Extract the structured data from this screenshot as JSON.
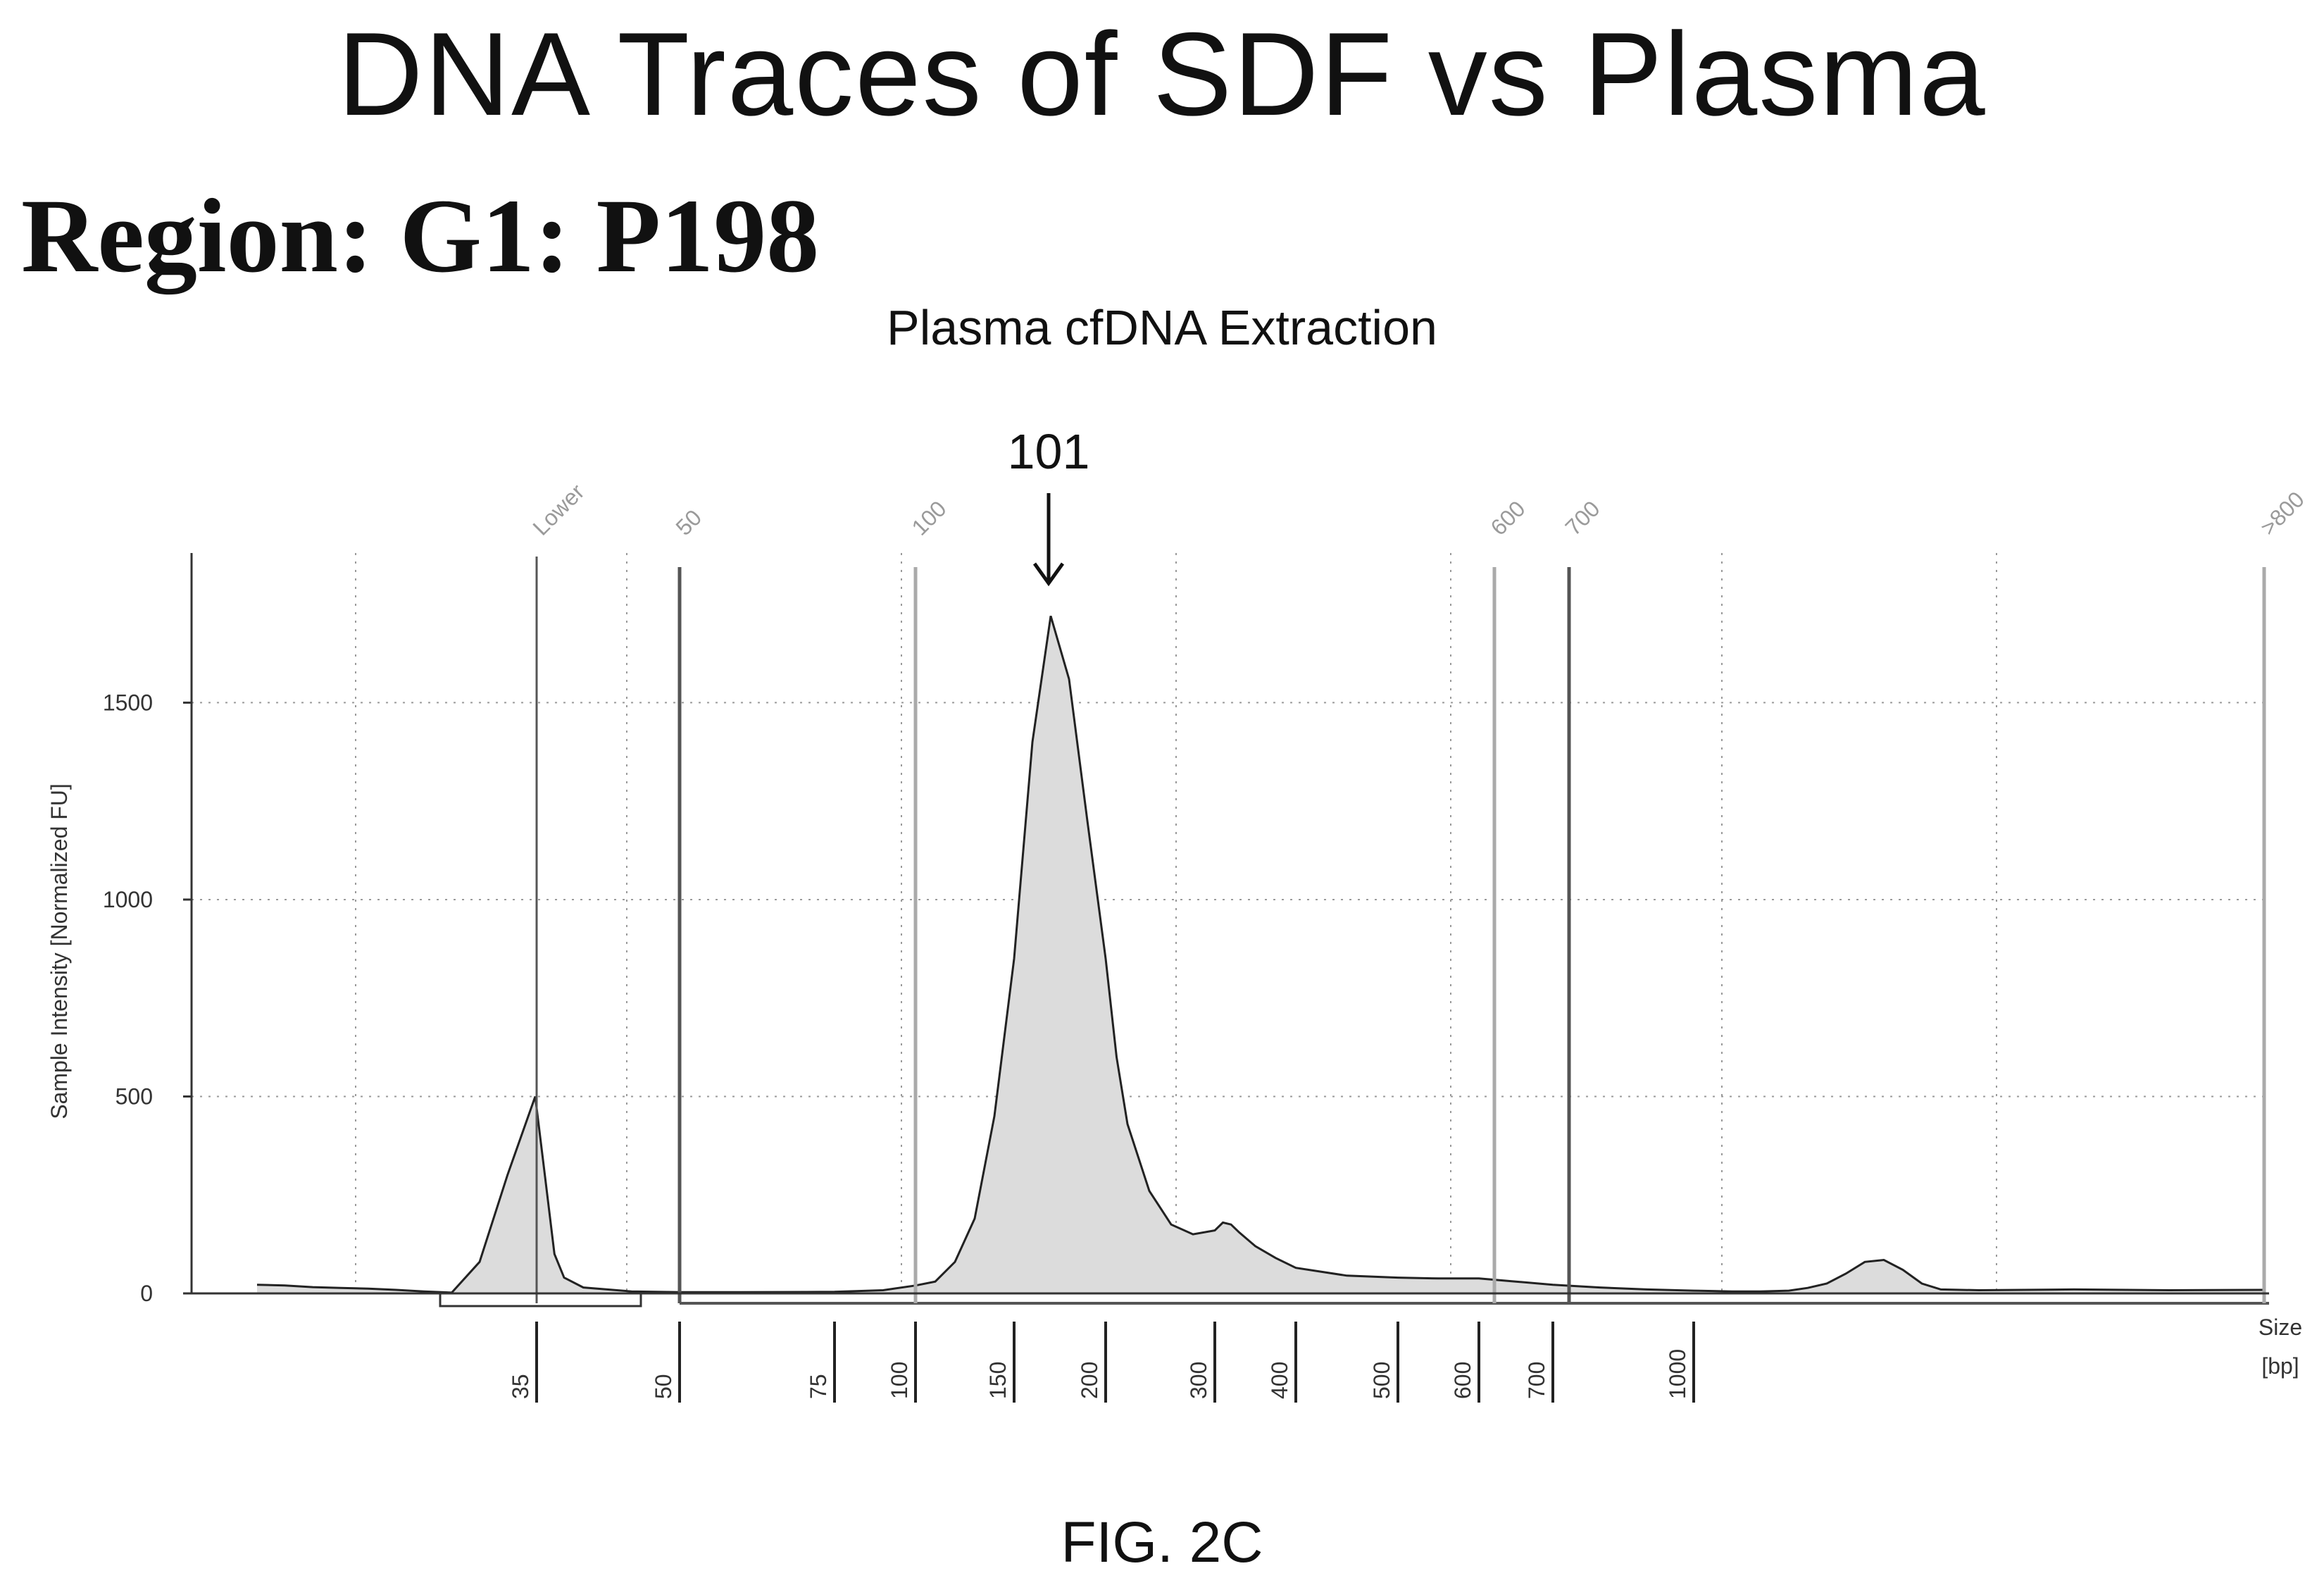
{
  "headline": "DNA Traces of SDF vs Plasma",
  "region": "Region: G1: P198",
  "figure_label": "FIG. 2C",
  "chart_data": {
    "type": "area",
    "title": "Plasma cfDNA Extraction",
    "ylabel": "Sample Intensity [Normalized FU]",
    "xlabel": "Size\n[bp]",
    "xlabel_lines": [
      "Size",
      "[bp]"
    ],
    "ylim": [
      0,
      1880
    ],
    "yticks": [
      0,
      500,
      1000,
      1500
    ],
    "grid": true,
    "x_scale": "nonlinear (electrophoresis size ladder)",
    "size_ticks": [
      35,
      50,
      75,
      100,
      150,
      200,
      300,
      400,
      500,
      600,
      700,
      1000
    ],
    "top_markers": [
      "Lower",
      "50",
      "100",
      "600",
      "700",
      ">800"
    ],
    "peak_annotation": {
      "label": "101",
      "x_bp": 170,
      "y": 1720
    },
    "trace": [
      {
        "x_bp": 25,
        "y": 22
      },
      {
        "x_bp": 26,
        "y": 20
      },
      {
        "x_bp": 27,
        "y": 16
      },
      {
        "x_bp": 28,
        "y": 14
      },
      {
        "x_bp": 29,
        "y": 12
      },
      {
        "x_bp": 30,
        "y": 9
      },
      {
        "x_bp": 31,
        "y": 5
      },
      {
        "x_bp": 32,
        "y": 2
      },
      {
        "x_bp": 33,
        "y": 80
      },
      {
        "x_bp": 34,
        "y": 300
      },
      {
        "x_bp": 35,
        "y": 500
      },
      {
        "x_bp": 36,
        "y": 300
      },
      {
        "x_bp": 37,
        "y": 100
      },
      {
        "x_bp": 38,
        "y": 40
      },
      {
        "x_bp": 40,
        "y": 15
      },
      {
        "x_bp": 45,
        "y": 5
      },
      {
        "x_bp": 50,
        "y": 3
      },
      {
        "x_bp": 60,
        "y": 3
      },
      {
        "x_bp": 75,
        "y": 4
      },
      {
        "x_bp": 90,
        "y": 8
      },
      {
        "x_bp": 100,
        "y": 20
      },
      {
        "x_bp": 110,
        "y": 30
      },
      {
        "x_bp": 120,
        "y": 80
      },
      {
        "x_bp": 130,
        "y": 190
      },
      {
        "x_bp": 140,
        "y": 450
      },
      {
        "x_bp": 150,
        "y": 850
      },
      {
        "x_bp": 160,
        "y": 1400
      },
      {
        "x_bp": 170,
        "y": 1720
      },
      {
        "x_bp": 180,
        "y": 1560
      },
      {
        "x_bp": 190,
        "y": 1200
      },
      {
        "x_bp": 200,
        "y": 850
      },
      {
        "x_bp": 210,
        "y": 600
      },
      {
        "x_bp": 220,
        "y": 430
      },
      {
        "x_bp": 240,
        "y": 260
      },
      {
        "x_bp": 260,
        "y": 175
      },
      {
        "x_bp": 280,
        "y": 150
      },
      {
        "x_bp": 300,
        "y": 160
      },
      {
        "x_bp": 310,
        "y": 180
      },
      {
        "x_bp": 320,
        "y": 175
      },
      {
        "x_bp": 330,
        "y": 155
      },
      {
        "x_bp": 350,
        "y": 120
      },
      {
        "x_bp": 375,
        "y": 90
      },
      {
        "x_bp": 400,
        "y": 65
      },
      {
        "x_bp": 450,
        "y": 45
      },
      {
        "x_bp": 500,
        "y": 40
      },
      {
        "x_bp": 550,
        "y": 38
      },
      {
        "x_bp": 600,
        "y": 38
      },
      {
        "x_bp": 650,
        "y": 30
      },
      {
        "x_bp": 700,
        "y": 22
      },
      {
        "x_bp": 800,
        "y": 15
      },
      {
        "x_bp": 900,
        "y": 10
      },
      {
        "x_bp": 1000,
        "y": 7
      },
      {
        "x_bp": 1200,
        "y": 6
      },
      {
        "x_bp": 1400,
        "y": 5
      },
      {
        "x_bp": 1700,
        "y": 5
      },
      {
        "x_bp": 2000,
        "y": 7
      },
      {
        "x_bp": 2200,
        "y": 14
      },
      {
        "x_bp": 2400,
        "y": 25
      },
      {
        "x_bp": 2600,
        "y": 50
      },
      {
        "x_bp": 2800,
        "y": 80
      },
      {
        "x_bp": 3000,
        "y": 85
      },
      {
        "x_bp": 3200,
        "y": 60
      },
      {
        "x_bp": 3400,
        "y": 25
      },
      {
        "x_bp": 3600,
        "y": 10
      },
      {
        "x_bp": 4000,
        "y": 8
      },
      {
        "x_bp": 5000,
        "y": 10
      },
      {
        "x_bp": 6000,
        "y": 8
      },
      {
        "x_bp": 7000,
        "y": 9
      }
    ]
  }
}
